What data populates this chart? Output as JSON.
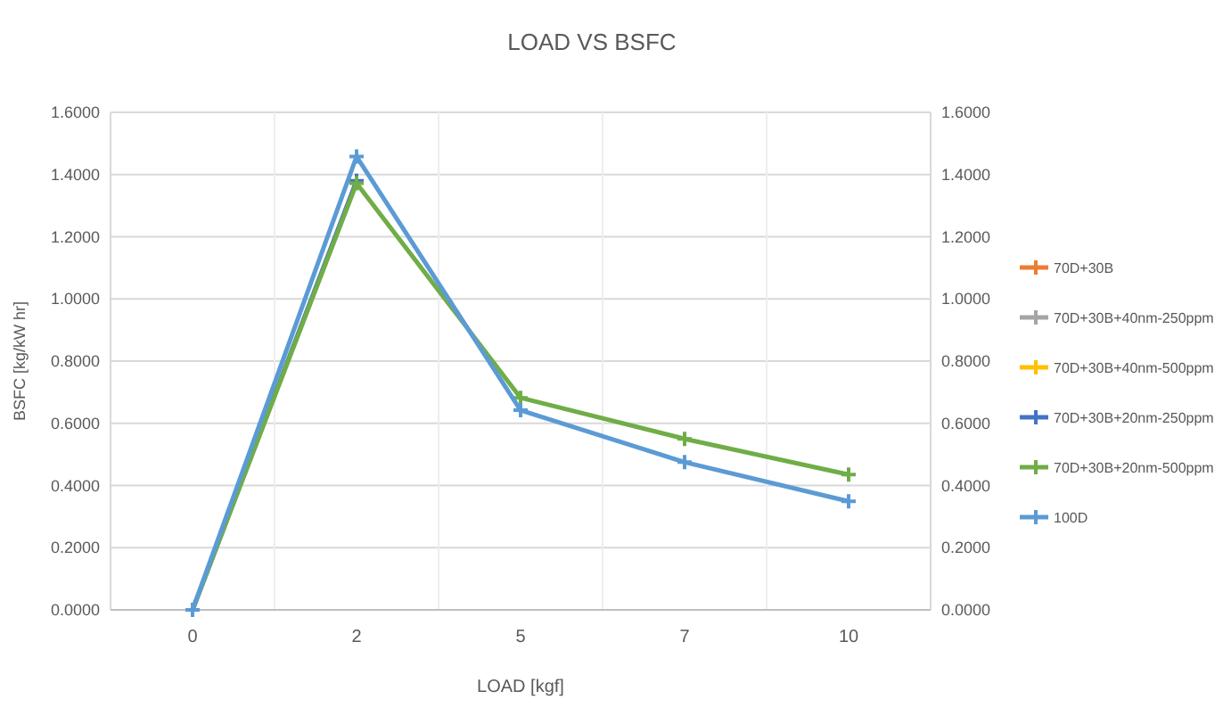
{
  "chart_data": {
    "type": "line",
    "title": "LOAD VS BSFC",
    "xlabel": "LOAD [kgf]",
    "ylabel": "BSFC [kg/kW hr]",
    "categories": [
      "0",
      "2",
      "5",
      "7",
      "10"
    ],
    "series": [
      {
        "name": "70D+30B",
        "color": "#ed7d31",
        "values": [
          null,
          null,
          null,
          null,
          null
        ]
      },
      {
        "name": "70D+30B+40nm-250ppm",
        "color": "#a5a5a5",
        "values": [
          null,
          null,
          null,
          null,
          null
        ]
      },
      {
        "name": "70D+30B+40nm-500ppm",
        "color": "#ffc000",
        "values": [
          null,
          null,
          null,
          null,
          null
        ]
      },
      {
        "name": "70D+30B+20nm-250ppm",
        "color": "#4472c4",
        "values": [
          0,
          1.38,
          null,
          null,
          null
        ]
      },
      {
        "name": "70D+30B+20nm-500ppm",
        "color": "#70ad47",
        "values": [
          0,
          1.372,
          0.682,
          0.55,
          0.435
        ]
      },
      {
        "name": "100D",
        "color": "#5b9bd5",
        "values": [
          0,
          1.458,
          0.642,
          0.475,
          0.349
        ]
      }
    ],
    "ylim": [
      0,
      1.6
    ],
    "yticks": [
      {
        "value": 0,
        "label": "0.0000"
      },
      {
        "value": 0.2,
        "label": "0.2000"
      },
      {
        "value": 0.4,
        "label": "0.4000"
      },
      {
        "value": 0.6,
        "label": "0.6000"
      },
      {
        "value": 0.8,
        "label": "0.8000"
      },
      {
        "value": 1,
        "label": "1.0000"
      },
      {
        "value": 1.2,
        "label": "1.2000"
      },
      {
        "value": 1.4,
        "label": "1.4000"
      },
      {
        "value": 1.6,
        "label": "1.6000"
      }
    ],
    "y2lim": [
      0,
      1.6
    ],
    "y2ticks": [
      {
        "value": 0,
        "label": "0.0000"
      },
      {
        "value": 0.2,
        "label": "0.2000"
      },
      {
        "value": 0.4,
        "label": "0.4000"
      },
      {
        "value": 0.6,
        "label": "0.6000"
      },
      {
        "value": 0.8,
        "label": "0.8000"
      },
      {
        "value": 1,
        "label": "1.0000"
      },
      {
        "value": 1.2,
        "label": "1.2000"
      },
      {
        "value": 1.4,
        "label": "1.4000"
      },
      {
        "value": 1.6,
        "label": "1.6000"
      }
    ],
    "grid": true,
    "legend": "right",
    "marker": "cross",
    "line_style": "solid"
  }
}
